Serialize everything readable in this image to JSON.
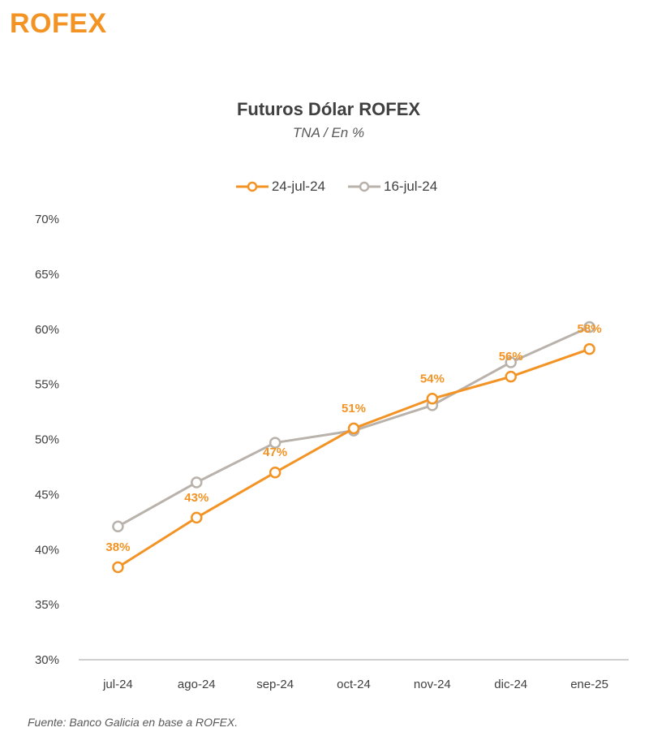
{
  "header": {
    "title": "ROFEX"
  },
  "source_note": "Fuente: Banco Galicia en base a ROFEX.",
  "colors": {
    "accent": "#F39324",
    "series_primary": "#F39324",
    "series_secondary": "#B9B2AB",
    "axis": "#BFBFBF"
  },
  "chart_data": {
    "type": "line",
    "title": "Futuros Dólar ROFEX",
    "subtitle": "TNA / En %",
    "xlabel": "",
    "ylabel": "",
    "ylim": [
      30,
      70
    ],
    "yticks": [
      "70%",
      "65%",
      "60%",
      "55%",
      "50%",
      "45%",
      "40%",
      "35%",
      "30%"
    ],
    "categories": [
      "jul-24",
      "ago-24",
      "sep-24",
      "oct-24",
      "nov-24",
      "dic-24",
      "ene-25"
    ],
    "legend_position": "top",
    "grid": false,
    "series": [
      {
        "name": "24-jul-24",
        "color": "#F39324",
        "values": [
          38.4,
          42.9,
          47.0,
          51.0,
          53.7,
          55.7,
          58.2
        ],
        "labels": [
          "38%",
          "43%",
          "47%",
          "51%",
          "54%",
          "56%",
          "58%"
        ]
      },
      {
        "name": "16-jul-24",
        "color": "#B9B2AB",
        "values": [
          42.1,
          46.1,
          49.7,
          50.8,
          53.1,
          57.0,
          60.2
        ]
      }
    ]
  }
}
